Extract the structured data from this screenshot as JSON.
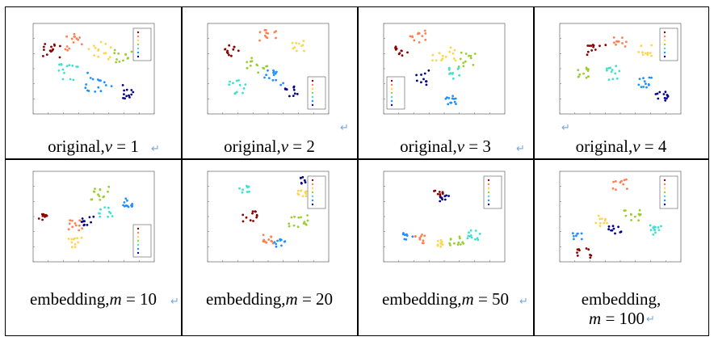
{
  "figure": {
    "cells": [
      {
        "caption_prefix": "original,",
        "var": "v",
        "eq": " = ",
        "value": "1"
      },
      {
        "caption_prefix": "original,",
        "var": "v",
        "eq": " = ",
        "value": "2"
      },
      {
        "caption_prefix": "original,",
        "var": "v",
        "eq": " = ",
        "value": "3"
      },
      {
        "caption_prefix": "original,",
        "var": "v",
        "eq": " = ",
        "value": "4"
      },
      {
        "caption_prefix": "embedding,",
        "var": "m",
        "eq": " = ",
        "value": "10"
      },
      {
        "caption_prefix": "embedding,",
        "var": "m",
        "eq": " = ",
        "value": "20"
      },
      {
        "caption_prefix": "embedding,",
        "var": "m",
        "eq": " = ",
        "value": "50"
      },
      {
        "caption_prefix": "embedding,",
        "var": "m",
        "eq": " = ",
        "value": "100"
      }
    ],
    "return_mark": "↵",
    "palette": [
      "#8b0000",
      "#ff7f50",
      "#ffd54f",
      "#9acd32",
      "#40e0d0",
      "#1e90ff",
      "#00008b"
    ]
  }
}
